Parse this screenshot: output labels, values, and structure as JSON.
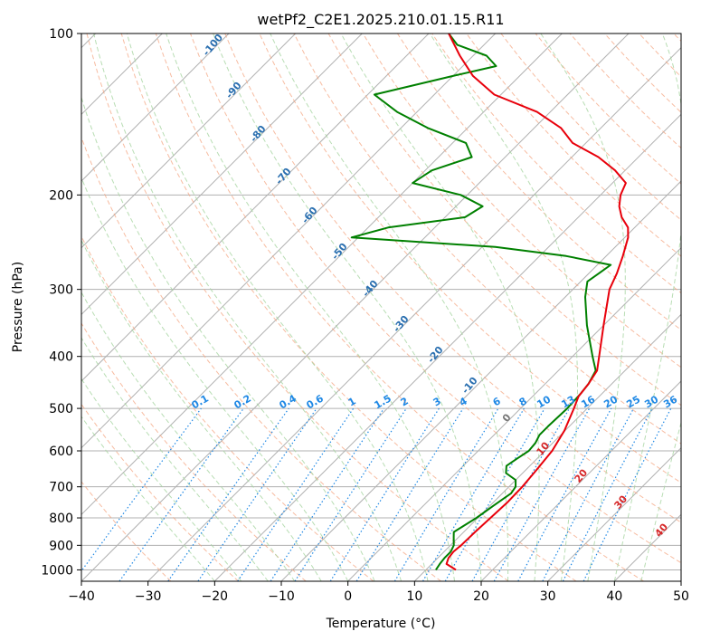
{
  "chart_data": {
    "type": "skew-t log-p",
    "title": "wetPf2_C2E1.2025.210.01.15.R11",
    "xlabel": "Temperature (°C)",
    "ylabel": "Pressure (hPa)",
    "xlim": [
      -40,
      50
    ],
    "ylim": [
      1050,
      100
    ],
    "y_scale": "log",
    "x_ticks": [
      "−40",
      "−30",
      "−20",
      "−10",
      "0",
      "10",
      "20",
      "30",
      "40",
      "50"
    ],
    "y_ticks": [
      "100",
      "200",
      "300",
      "400",
      "500",
      "600",
      "700",
      "800",
      "900",
      "1000"
    ],
    "grid": true,
    "colors": {
      "temperature": "#e8000b",
      "dewpoint": "#008000",
      "isotherm": "#b0b0b0",
      "dry_adiabat": "#f4a582",
      "moist_adiabat": "#a6d5a0",
      "mixing_ratio": "#1e88e5",
      "theta_e_label": "#2a6fb0",
      "warm_label": "#d62728"
    },
    "temperature": [
      [
        1000,
        14.5
      ],
      [
        975,
        12.2
      ],
      [
        950,
        11.6
      ],
      [
        925,
        11.4
      ],
      [
        900,
        11.6
      ],
      [
        850,
        11.7
      ],
      [
        800,
        11.9
      ],
      [
        750,
        12.1
      ],
      [
        700,
        12.0
      ],
      [
        650,
        11.6
      ],
      [
        600,
        11.1
      ],
      [
        550,
        9.9
      ],
      [
        500,
        8.0
      ],
      [
        475,
        6.9
      ],
      [
        450,
        6.5
      ],
      [
        425,
        5.8
      ],
      [
        400,
        4.0
      ],
      [
        350,
        0.0
      ],
      [
        300,
        -4.5
      ],
      [
        280,
        -5.8
      ],
      [
        260,
        -7.5
      ],
      [
        240,
        -9.5
      ],
      [
        230,
        -11.0
      ],
      [
        220,
        -13.5
      ],
      [
        210,
        -15.5
      ],
      [
        200,
        -17.0
      ],
      [
        190,
        -18.0
      ],
      [
        180,
        -21.5
      ],
      [
        170,
        -26.0
      ],
      [
        160,
        -32.0
      ],
      [
        150,
        -36.0
      ],
      [
        140,
        -42.0
      ],
      [
        130,
        -51.0
      ],
      [
        120,
        -57.0
      ],
      [
        110,
        -62.0
      ],
      [
        100,
        -67.0
      ]
    ],
    "dewpoint": [
      [
        1000,
        11.5
      ],
      [
        975,
        11.2
      ],
      [
        950,
        11.0
      ],
      [
        925,
        11.0
      ],
      [
        900,
        10.5
      ],
      [
        870,
        9.3
      ],
      [
        850,
        8.5
      ],
      [
        830,
        9.0
      ],
      [
        800,
        9.8
      ],
      [
        760,
        10.5
      ],
      [
        720,
        11.3
      ],
      [
        700,
        11.0
      ],
      [
        680,
        10.0
      ],
      [
        660,
        7.5
      ],
      [
        640,
        6.5
      ],
      [
        620,
        7.0
      ],
      [
        600,
        7.6
      ],
      [
        580,
        7.4
      ],
      [
        560,
        6.8
      ],
      [
        540,
        6.8
      ],
      [
        500,
        7.0
      ],
      [
        470,
        6.8
      ],
      [
        450,
        6.5
      ],
      [
        425,
        5.6
      ],
      [
        400,
        3.0
      ],
      [
        350,
        -2.5
      ],
      [
        310,
        -7.0
      ],
      [
        290,
        -9.0
      ],
      [
        280,
        -8.5
      ],
      [
        270,
        -8.0
      ],
      [
        260,
        -16.0
      ],
      [
        250,
        -28.0
      ],
      [
        240,
        -51.0
      ],
      [
        230,
        -47.0
      ],
      [
        220,
        -37.0
      ],
      [
        210,
        -36.0
      ],
      [
        200,
        -41.0
      ],
      [
        190,
        -50.0
      ],
      [
        180,
        -49.0
      ],
      [
        170,
        -45.0
      ],
      [
        160,
        -48.0
      ],
      [
        150,
        -56.0
      ],
      [
        140,
        -63.0
      ],
      [
        130,
        -69.0
      ],
      [
        120,
        -60.0
      ],
      [
        115,
        -55.0
      ],
      [
        110,
        -58.0
      ],
      [
        105,
        -64.0
      ],
      [
        100,
        -67.0
      ]
    ],
    "theta_e_labels": [
      "-100",
      "-90",
      "-80",
      "-70",
      "-60",
      "-50",
      "-40",
      "-30",
      "-20",
      "-10"
    ],
    "mixing_ratio_labels": [
      "0.1",
      "0.2",
      "0.4",
      "0.6",
      "1",
      "1.5",
      "2",
      "3",
      "4",
      "6",
      "8",
      "10",
      "13",
      "16",
      "20",
      "25",
      "30",
      "36"
    ],
    "warm_labels": [
      "0",
      "10",
      "20",
      "30",
      "40"
    ]
  }
}
